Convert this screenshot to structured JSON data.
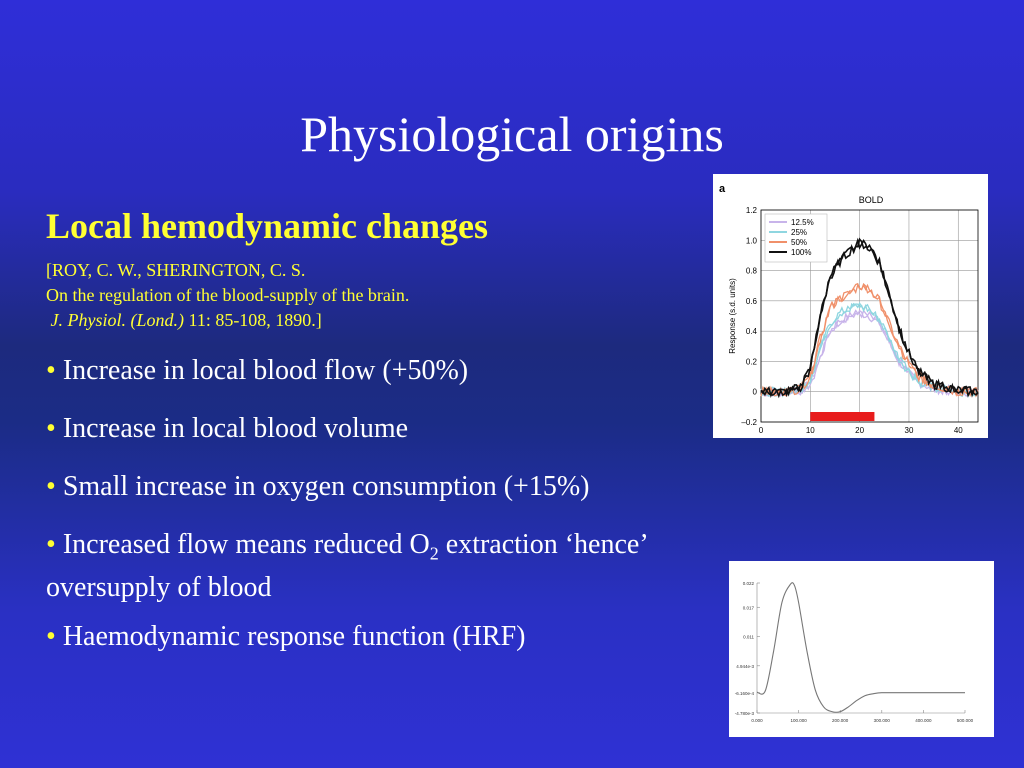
{
  "slide": {
    "title": "Physiological origins",
    "subtitle": "Local hemodynamic changes",
    "citation": {
      "line1": "[ROY, C. W., SHERINGTON, C. S.",
      "line2": "On the regulation of the blood-supply of the brain.",
      "journal": "J. Physiol. (Lond.)",
      "journal_details": "11: 85-108, 1890.]"
    },
    "bullets": [
      {
        "text": "Increase in  local blood flow (+50%)"
      },
      {
        "text": "Increase in local blood volume"
      },
      {
        "text": "Small increase in oxygen consumption (+15%)"
      },
      {
        "pre": "Increased flow means reduced O",
        "sub": "2",
        "post": " extraction ‘hence’",
        "line2": "oversupply of blood"
      },
      {
        "text": "Haemodynamic response function (HRF)"
      }
    ],
    "bullet_marker": "•"
  },
  "bold_figure": {
    "panel_label": "a",
    "title": "BOLD",
    "ylabel": "Response (s.d. units)",
    "x_ticks": [
      "0",
      "10",
      "20",
      "30",
      "40"
    ],
    "y_ticks": [
      "1.2",
      "1.0",
      "0.8",
      "0.6",
      "0.4",
      "0.2",
      "0",
      "–0.2"
    ],
    "legend": [
      {
        "label": "12.5%",
        "color": "#c8b4ea"
      },
      {
        "label": "25%",
        "color": "#8fd6e0"
      },
      {
        "label": "50%",
        "color": "#f0906a"
      },
      {
        "label": "100%",
        "color": "#111111"
      }
    ]
  },
  "chart_data": [
    {
      "type": "line",
      "title": "BOLD",
      "ylabel": "Response (s.d. units)",
      "xlim": [
        0,
        44
      ],
      "ylim": [
        -0.2,
        1.2
      ],
      "stimulus_bar": {
        "from": 10,
        "to": 23,
        "color": "#e81c1c"
      },
      "series": [
        {
          "name": "12.5%",
          "color": "#c8b4ea",
          "x": [
            0,
            5,
            8,
            10,
            12,
            14,
            16,
            18,
            20,
            22,
            24,
            26,
            28,
            30,
            32,
            35,
            40,
            44
          ],
          "values": [
            0.0,
            0.0,
            0.01,
            0.05,
            0.22,
            0.4,
            0.47,
            0.5,
            0.52,
            0.5,
            0.45,
            0.32,
            0.2,
            0.12,
            0.06,
            0.02,
            0.0,
            0.0
          ]
        },
        {
          "name": "25%",
          "color": "#8fd6e0",
          "x": [
            0,
            5,
            8,
            10,
            12,
            14,
            16,
            18,
            20,
            22,
            24,
            26,
            28,
            30,
            32,
            35,
            40,
            44
          ],
          "values": [
            0.0,
            0.0,
            0.02,
            0.08,
            0.28,
            0.45,
            0.52,
            0.55,
            0.57,
            0.54,
            0.48,
            0.35,
            0.22,
            0.13,
            0.07,
            0.03,
            0.0,
            0.0
          ]
        },
        {
          "name": "50%",
          "color": "#f0906a",
          "x": [
            0,
            5,
            8,
            10,
            12,
            14,
            16,
            18,
            20,
            22,
            24,
            26,
            28,
            30,
            32,
            35,
            40,
            44
          ],
          "values": [
            0.0,
            0.0,
            0.02,
            0.1,
            0.35,
            0.55,
            0.62,
            0.65,
            0.7,
            0.68,
            0.6,
            0.45,
            0.3,
            0.18,
            0.1,
            0.04,
            0.0,
            0.0
          ]
        },
        {
          "name": "100%",
          "color": "#111111",
          "x": [
            0,
            5,
            8,
            10,
            12,
            14,
            16,
            18,
            20,
            22,
            24,
            26,
            28,
            30,
            32,
            35,
            40,
            44
          ],
          "values": [
            0.0,
            0.0,
            0.03,
            0.15,
            0.5,
            0.76,
            0.86,
            0.93,
            0.98,
            0.96,
            0.85,
            0.65,
            0.42,
            0.25,
            0.13,
            0.05,
            0.01,
            0.0
          ]
        }
      ]
    },
    {
      "type": "line",
      "x_ticks": [
        "0.000",
        "100.000",
        "200.000",
        "300.000",
        "400.000",
        "500.000"
      ],
      "y_ticks": [
        "0.022",
        "0.017",
        "0.011",
        "4.944e-3",
        "-6.160e-4",
        "-4.780e-3"
      ],
      "xlim": [
        0,
        500
      ],
      "ylim": [
        -0.00478,
        0.022
      ],
      "series": [
        {
          "x": [
            0,
            20,
            40,
            60,
            80,
            90,
            100,
            120,
            140,
            160,
            180,
            200,
            220,
            240,
            260,
            280,
            300,
            350,
            400,
            500
          ],
          "values": [
            -0.0005,
            -0.0002,
            0.008,
            0.018,
            0.0217,
            0.0215,
            0.018,
            0.008,
            0.0,
            -0.0035,
            -0.0045,
            -0.0045,
            -0.0035,
            -0.0022,
            -0.0012,
            -0.0008,
            -0.0006,
            -0.0006,
            -0.0006,
            -0.0006
          ]
        }
      ]
    }
  ]
}
